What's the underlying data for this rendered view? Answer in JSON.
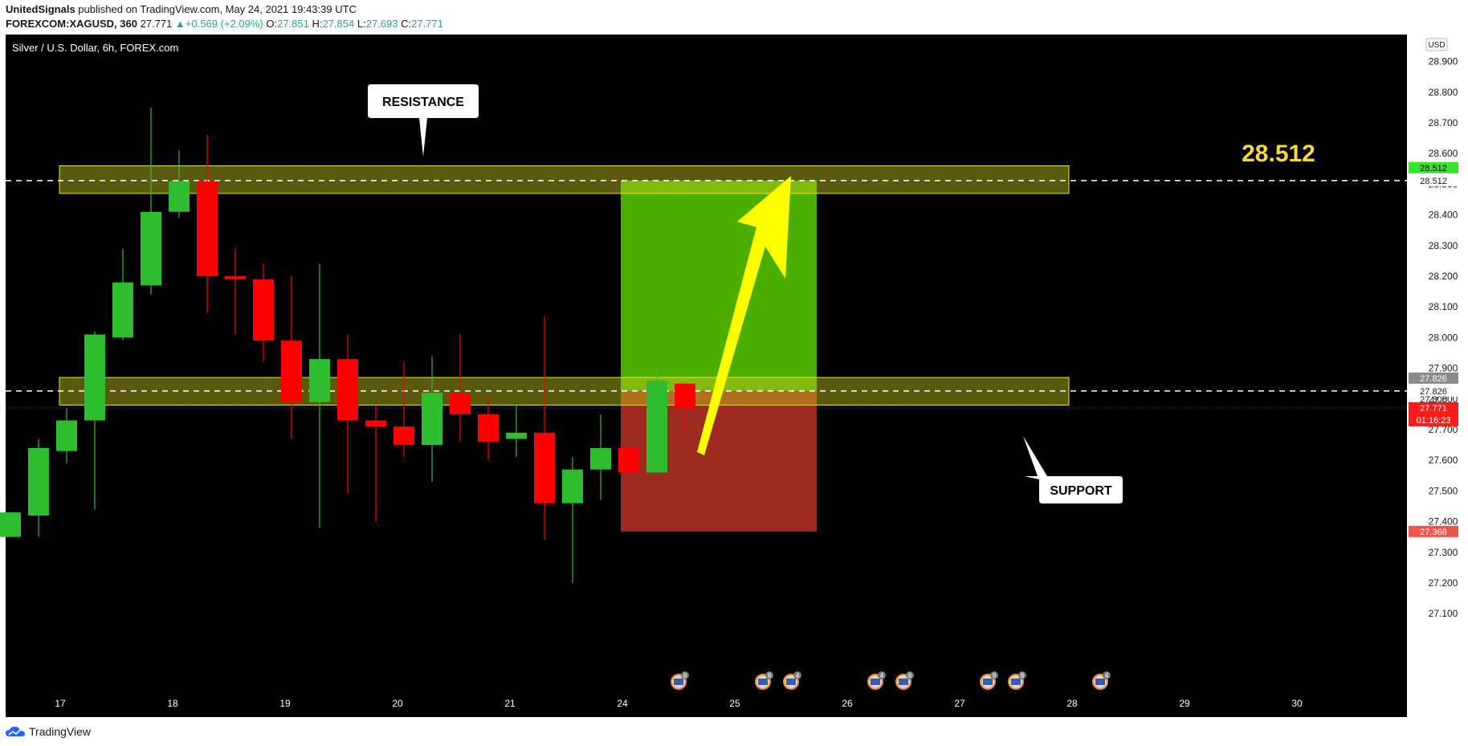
{
  "header": {
    "publisher": "UnitedSignals",
    "published_text": " published on TradingView.com, May 24, 2021 19:43:39 UTC",
    "symbol": "FOREXCOM:XAGUSD, 360",
    "last": "27.771",
    "change": "+0.569 (+2.09%)",
    "open_label": "O:",
    "open": "27.851",
    "high_label": "H:",
    "high": "27.854",
    "low_label": "L:",
    "low": "27.693",
    "close_label": "C:",
    "close": "27.771"
  },
  "chart_data": {
    "type": "candlestick",
    "title": "Silver / U.S. Dollar, 6h, FOREX.com",
    "currency": "USD",
    "ylim": [
      27.0,
      28.92
    ],
    "y_ticks": [
      "28.900",
      "28.800",
      "28.700",
      "28.600",
      "28.500",
      "28.400",
      "28.300",
      "28.200",
      "28.100",
      "28.000",
      "27.900",
      "27.800",
      "27.700",
      "27.600",
      "27.500",
      "27.400",
      "27.300",
      "27.200",
      "27.100"
    ],
    "x_ticks": [
      "17",
      "18",
      "19",
      "20",
      "21",
      "24",
      "25",
      "26",
      "27",
      "28",
      "29",
      "30"
    ],
    "candles": [
      {
        "o": 27.35,
        "h": 27.43,
        "l": 27.35,
        "c": 27.43
      },
      {
        "o": 27.42,
        "h": 27.67,
        "l": 27.35,
        "c": 27.64
      },
      {
        "o": 27.63,
        "h": 27.77,
        "l": 27.59,
        "c": 27.73
      },
      {
        "o": 27.73,
        "h": 28.02,
        "l": 27.44,
        "c": 28.01
      },
      {
        "o": 28.0,
        "h": 28.29,
        "l": 27.99,
        "c": 28.18
      },
      {
        "o": 28.17,
        "h": 28.75,
        "l": 28.14,
        "c": 28.41
      },
      {
        "o": 28.41,
        "h": 28.61,
        "l": 28.39,
        "c": 28.51
      },
      {
        "o": 28.51,
        "h": 28.66,
        "l": 28.08,
        "c": 28.2
      },
      {
        "o": 28.2,
        "h": 28.29,
        "l": 28.01,
        "c": 28.19
      },
      {
        "o": 28.19,
        "h": 28.24,
        "l": 27.92,
        "c": 27.99
      },
      {
        "o": 27.99,
        "h": 28.2,
        "l": 27.67,
        "c": 27.79
      },
      {
        "o": 27.79,
        "h": 28.24,
        "l": 27.38,
        "c": 27.93
      },
      {
        "o": 27.93,
        "h": 28.01,
        "l": 27.49,
        "c": 27.73
      },
      {
        "o": 27.73,
        "h": 27.78,
        "l": 27.4,
        "c": 27.71
      },
      {
        "o": 27.71,
        "h": 27.92,
        "l": 27.61,
        "c": 27.65
      },
      {
        "o": 27.65,
        "h": 27.94,
        "l": 27.53,
        "c": 27.82
      },
      {
        "o": 27.82,
        "h": 28.01,
        "l": 27.66,
        "c": 27.75
      },
      {
        "o": 27.75,
        "h": 27.81,
        "l": 27.6,
        "c": 27.66
      },
      {
        "o": 27.67,
        "h": 27.78,
        "l": 27.61,
        "c": 27.69
      },
      {
        "o": 27.69,
        "h": 28.07,
        "l": 27.34,
        "c": 27.46
      },
      {
        "o": 27.46,
        "h": 27.61,
        "l": 27.2,
        "c": 27.57
      },
      {
        "o": 27.57,
        "h": 27.75,
        "l": 27.47,
        "c": 27.64
      },
      {
        "o": 27.64,
        "h": 27.64,
        "l": 27.56,
        "c": 27.56
      },
      {
        "o": 27.56,
        "h": 27.91,
        "l": 27.56,
        "c": 27.86
      },
      {
        "o": 27.85,
        "h": 27.85,
        "l": 27.69,
        "c": 27.77
      }
    ],
    "zones": [
      {
        "name": "resistance",
        "low": 28.47,
        "high": 28.56
      },
      {
        "name": "support",
        "low": 27.78,
        "high": 27.87
      }
    ],
    "position": {
      "entry": 27.826,
      "target": 28.512,
      "stop": 27.368
    },
    "price_lines": [
      28.512,
      27.826
    ],
    "annotations": {
      "resistance_label": "RESISTANCE",
      "support_label": "SUPPORT",
      "target_text": "28.512"
    },
    "axis_badges": {
      "target": "28.512",
      "target_line": "28.512",
      "entry": "27.826",
      "entry_line": "27.826",
      "last_price": "27.771",
      "countdown": "01:16:23",
      "stop": "27.368",
      "hidden_tick": "27.800"
    },
    "events": [
      {
        "x_day": 24.5,
        "count": "8"
      },
      {
        "x_day": 25.25,
        "count": "8"
      },
      {
        "x_day": 25.5,
        "count": "4"
      },
      {
        "x_day": 26.25,
        "count": "4"
      },
      {
        "x_day": 26.5,
        "count": "8"
      },
      {
        "x_day": 27.25,
        "count": "9"
      },
      {
        "x_day": 27.5,
        "count": "8"
      },
      {
        "x_day": 28.25,
        "count": "4"
      }
    ],
    "colors": {
      "up": "#2ebd2e",
      "down": "#ff0000",
      "background": "#000000",
      "zone": "#c8c81e",
      "target_fill": "#4caf00",
      "stop_fill": "#9c2a1e",
      "arrow": "#ffff00",
      "target_text": "#f5d742"
    }
  },
  "footer": {
    "brand": "TradingView"
  }
}
